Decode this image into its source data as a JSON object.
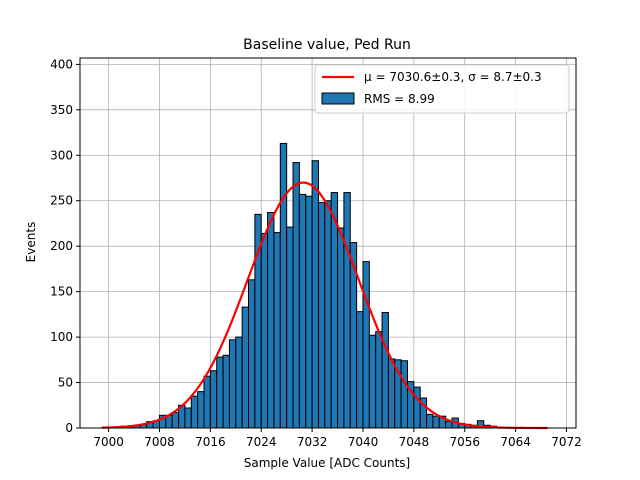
{
  "chart_data": {
    "type": "bar",
    "title": "Baseline value, Ped Run",
    "xlabel": "Sample Value [ADC Counts]",
    "ylabel": "Events",
    "xlim": [
      6995.5,
      7073.5
    ],
    "ylim": [
      0,
      407
    ],
    "xticks": [
      7000,
      7008,
      7016,
      7024,
      7032,
      7040,
      7048,
      7056,
      7064,
      7072
    ],
    "yticks": [
      0,
      50,
      100,
      150,
      200,
      250,
      300,
      350,
      400
    ],
    "grid": true,
    "legend_position": "top-right",
    "bin_width": 1,
    "bar_color": "#1f77b4",
    "fit_color": "#ff0000",
    "histogram": {
      "legend": "RMS = 8.99",
      "bin_left_edges": [
        6999,
        7000,
        7001,
        7002,
        7003,
        7004,
        7005,
        7006,
        7007,
        7008,
        7009,
        7010,
        7011,
        7012,
        7013,
        7014,
        7015,
        7016,
        7017,
        7018,
        7019,
        7020,
        7021,
        7022,
        7023,
        7024,
        7025,
        7026,
        7027,
        7028,
        7029,
        7030,
        7031,
        7032,
        7033,
        7034,
        7035,
        7036,
        7037,
        7038,
        7039,
        7040,
        7041,
        7042,
        7043,
        7044,
        7045,
        7046,
        7047,
        7048,
        7049,
        7050,
        7051,
        7052,
        7053,
        7054,
        7055,
        7056,
        7057,
        7058,
        7059,
        7060
      ],
      "counts": [
        1,
        1,
        1,
        2,
        2,
        3,
        4,
        7,
        8,
        14,
        14,
        17,
        25,
        22,
        35,
        40,
        57,
        63,
        78,
        80,
        97,
        100,
        133,
        163,
        235,
        214,
        237,
        215,
        313,
        221,
        292,
        257,
        255,
        294,
        248,
        250,
        259,
        220,
        259,
        204,
        128,
        183,
        102,
        106,
        127,
        76,
        75,
        74,
        51,
        45,
        33,
        15,
        13,
        13,
        7,
        11,
        5,
        4,
        3,
        8,
        3,
        2
      ]
    },
    "fit": {
      "legend_mu": "μ = 7030.6±0.3, ",
      "legend_sigma": "σ = 8.7±0.3",
      "mu": 7030.6,
      "sigma": 8.7,
      "amplitude": 270,
      "x_range": [
        6999,
        7069
      ]
    }
  }
}
